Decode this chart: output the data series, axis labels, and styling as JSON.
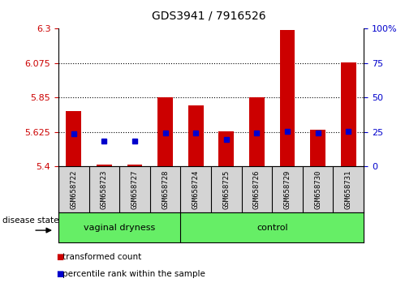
{
  "title": "GDS3941 / 7916526",
  "samples": [
    "GSM658722",
    "GSM658723",
    "GSM658727",
    "GSM658728",
    "GSM658724",
    "GSM658725",
    "GSM658726",
    "GSM658729",
    "GSM658730",
    "GSM658731"
  ],
  "bar_bottoms": [
    5.4,
    5.4,
    5.4,
    5.4,
    5.4,
    5.4,
    5.4,
    5.4,
    5.4,
    5.4
  ],
  "bar_tops": [
    5.76,
    5.41,
    5.41,
    5.85,
    5.8,
    5.63,
    5.85,
    6.29,
    5.64,
    6.08
  ],
  "blue_y": [
    5.615,
    5.565,
    5.565,
    5.618,
    5.618,
    5.575,
    5.618,
    5.632,
    5.618,
    5.632
  ],
  "ylim": [
    5.4,
    6.3
  ],
  "yticks_left": [
    5.4,
    5.625,
    5.85,
    6.075,
    6.3
  ],
  "yticks_right_pct": [
    0,
    25,
    50,
    75,
    100
  ],
  "right_ytick_labels": [
    "0",
    "25",
    "50",
    "75",
    "100%"
  ],
  "hlines": [
    5.625,
    5.85,
    6.075
  ],
  "bar_color": "#cc0000",
  "blue_color": "#0000cc",
  "group1_n": 4,
  "group2_n": 6,
  "group1_label": "vaginal dryness",
  "group2_label": "control",
  "group_color": "#66ee66",
  "tick_label_bg": "#d4d4d4",
  "label_disease_state": "disease state",
  "legend_red": "transformed count",
  "legend_blue": "percentile rank within the sample",
  "left_tick_color": "#cc0000",
  "right_tick_color": "#0000cc",
  "title_fontsize": 10,
  "bar_width": 0.5
}
